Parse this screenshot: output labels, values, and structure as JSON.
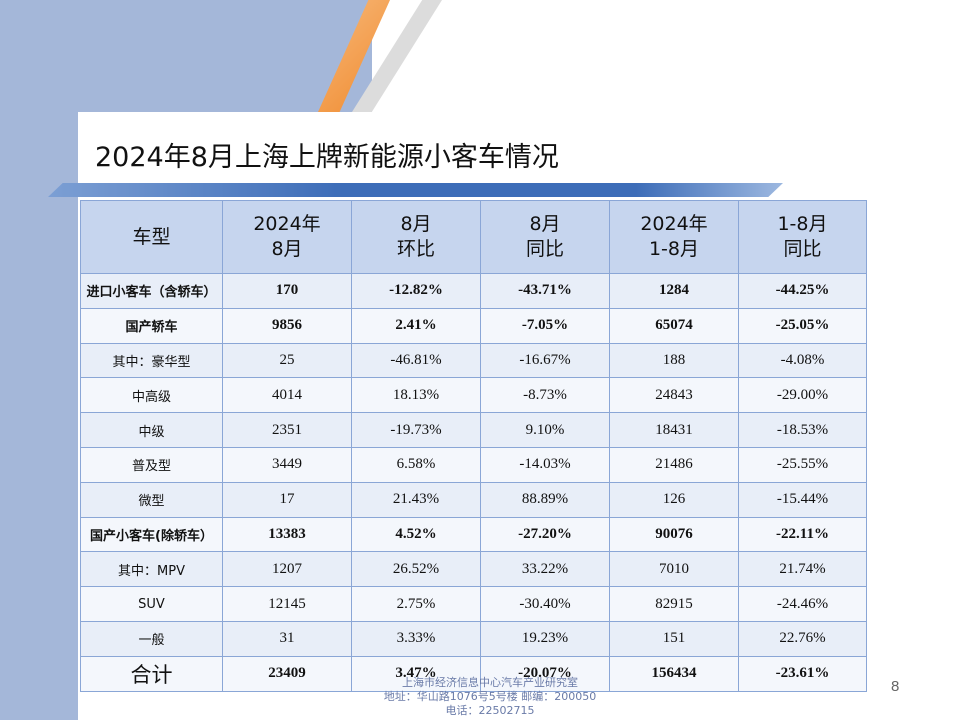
{
  "title": "2024年8月上海上牌新能源小客车情况",
  "table": {
    "headers": [
      [
        "车型"
      ],
      [
        "2024年",
        "8月"
      ],
      [
        "8月",
        "环比"
      ],
      [
        "8月",
        "同比"
      ],
      [
        "2024年",
        "1-8月"
      ],
      [
        "1-8月",
        "同比"
      ]
    ],
    "rows": [
      {
        "bold": true,
        "cells": [
          "进口小客车（含轿车）",
          "170",
          "-12.82%",
          "-43.71%",
          "1284",
          "-44.25%"
        ]
      },
      {
        "bold": true,
        "cells": [
          "国产轿车",
          "9856",
          "2.41%",
          "-7.05%",
          "65074",
          "-25.05%"
        ]
      },
      {
        "bold": false,
        "cells": [
          "其中：豪华型",
          "25",
          "-46.81%",
          "-16.67%",
          "188",
          "-4.08%"
        ]
      },
      {
        "bold": false,
        "cells": [
          "中高级",
          "4014",
          "18.13%",
          "-8.73%",
          "24843",
          "-29.00%"
        ]
      },
      {
        "bold": false,
        "cells": [
          "中级",
          "2351",
          "-19.73%",
          "9.10%",
          "18431",
          "-18.53%"
        ]
      },
      {
        "bold": false,
        "cells": [
          "普及型",
          "3449",
          "6.58%",
          "-14.03%",
          "21486",
          "-25.55%"
        ]
      },
      {
        "bold": false,
        "cells": [
          "微型",
          "17",
          "21.43%",
          "88.89%",
          "126",
          "-15.44%"
        ]
      },
      {
        "bold": true,
        "cells": [
          "国产小客车(除轿车）",
          "13383",
          "4.52%",
          "-27.20%",
          "90076",
          "-22.11%"
        ]
      },
      {
        "bold": false,
        "cells": [
          "其中：MPV",
          "1207",
          "26.52%",
          "33.22%",
          "7010",
          "21.74%"
        ]
      },
      {
        "bold": false,
        "cells": [
          "SUV",
          "12145",
          "2.75%",
          "-30.40%",
          "82915",
          "-24.46%"
        ]
      },
      {
        "bold": false,
        "cells": [
          "一般",
          "31",
          "3.33%",
          "19.23%",
          "151",
          "22.76%"
        ]
      },
      {
        "bold": true,
        "total": true,
        "cells": [
          "合计",
          "23409",
          "3.47%",
          "-20.07%",
          "156434",
          "-23.61%"
        ]
      }
    ]
  },
  "footer": {
    "line1": "上海市经济信息中心汽车产业研究室",
    "line2": "地址：华山路1076号5号楼   邮编：200050",
    "line3": "电话：22502715"
  },
  "page_number": "8"
}
